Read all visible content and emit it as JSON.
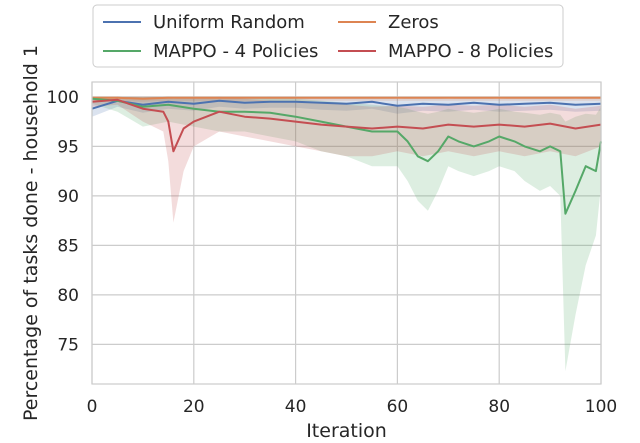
{
  "chart_data": {
    "type": "line",
    "title": "",
    "xlabel": "Iteration",
    "ylabel": "Percentage of tasks done - household 1",
    "xlim": [
      0,
      100
    ],
    "ylim": [
      71,
      101.5
    ],
    "x_ticks": [
      0,
      20,
      40,
      60,
      80,
      100
    ],
    "y_ticks": [
      75,
      80,
      85,
      90,
      95,
      100
    ],
    "grid": true,
    "legend": {
      "position": "top-outside",
      "columns": 2
    },
    "series": [
      {
        "name": "Uniform Random",
        "color": "#4c72b0",
        "x": [
          0,
          5,
          10,
          15,
          20,
          25,
          30,
          35,
          40,
          45,
          50,
          55,
          60,
          65,
          70,
          75,
          80,
          85,
          90,
          95,
          100
        ],
        "values": [
          98.8,
          99.6,
          99.2,
          99.5,
          99.3,
          99.6,
          99.4,
          99.5,
          99.5,
          99.4,
          99.3,
          99.5,
          99.1,
          99.3,
          99.2,
          99.4,
          99.2,
          99.3,
          99.4,
          99.2,
          99.3
        ],
        "lower": [
          98.0,
          99.0,
          98.4,
          98.8,
          98.6,
          99.0,
          98.8,
          98.9,
          98.9,
          98.7,
          98.6,
          98.8,
          98.3,
          98.6,
          98.5,
          98.7,
          98.5,
          98.6,
          98.7,
          98.5,
          98.6
        ],
        "upper": [
          99.6,
          100.0,
          99.9,
          100.0,
          99.9,
          100.0,
          99.9,
          100.0,
          100.0,
          99.9,
          99.9,
          100.0,
          99.8,
          99.9,
          99.8,
          99.9,
          99.8,
          99.9,
          99.9,
          99.8,
          99.9
        ]
      },
      {
        "name": "Zeros",
        "color": "#dd8452",
        "x": [
          0,
          5,
          10,
          15,
          20,
          25,
          30,
          35,
          40,
          45,
          50,
          55,
          60,
          65,
          70,
          75,
          80,
          85,
          90,
          95,
          100
        ],
        "values": [
          99.9,
          99.9,
          99.8,
          99.9,
          99.9,
          99.9,
          99.9,
          99.9,
          99.9,
          99.9,
          99.9,
          99.9,
          99.9,
          99.9,
          99.9,
          99.9,
          99.9,
          99.9,
          99.9,
          99.9,
          99.9
        ],
        "lower": [
          99.6,
          99.6,
          99.5,
          99.6,
          99.6,
          99.6,
          99.6,
          99.6,
          99.6,
          99.6,
          99.6,
          99.6,
          99.6,
          99.6,
          99.6,
          99.6,
          99.6,
          99.6,
          99.6,
          99.6,
          99.6
        ],
        "upper": [
          100.0,
          100.0,
          100.0,
          100.0,
          100.0,
          100.0,
          100.0,
          100.0,
          100.0,
          100.0,
          100.0,
          100.0,
          100.0,
          100.0,
          100.0,
          100.0,
          100.0,
          100.0,
          100.0,
          100.0,
          100.0
        ]
      },
      {
        "name": "MAPPO - 4 Policies",
        "color": "#55a868",
        "x": [
          0,
          5,
          10,
          15,
          20,
          25,
          30,
          35,
          40,
          45,
          50,
          55,
          60,
          62,
          64,
          66,
          68,
          70,
          72,
          75,
          78,
          80,
          83,
          85,
          88,
          90,
          92,
          93,
          95,
          97,
          99,
          100
        ],
        "values": [
          99.8,
          99.6,
          99.0,
          99.2,
          98.8,
          98.5,
          98.5,
          98.4,
          98.0,
          97.5,
          97.0,
          96.5,
          96.5,
          95.5,
          94.0,
          93.5,
          94.5,
          96.0,
          95.5,
          95.0,
          95.5,
          96.0,
          95.5,
          95.0,
          94.5,
          95.0,
          94.5,
          88.2,
          90.5,
          93.0,
          92.5,
          95.5
        ],
        "lower": [
          99.3,
          98.5,
          97.0,
          97.5,
          97.0,
          96.5,
          96.5,
          96.0,
          95.5,
          94.5,
          94.0,
          93.0,
          93.0,
          91.5,
          89.5,
          88.5,
          90.5,
          93.0,
          92.5,
          92.0,
          92.5,
          93.0,
          92.5,
          91.5,
          90.5,
          91.0,
          90.0,
          72.3,
          78.0,
          83.0,
          86.0,
          91.0
        ],
        "upper": [
          100.0,
          100.0,
          100.0,
          100.0,
          100.0,
          100.0,
          100.0,
          100.0,
          99.8,
          99.6,
          99.4,
          99.2,
          99.0,
          98.8,
          98.5,
          98.3,
          98.5,
          98.8,
          98.6,
          98.4,
          98.6,
          98.8,
          98.5,
          98.4,
          98.2,
          98.4,
          98.2,
          97.5,
          98.0,
          98.3,
          98.2,
          99.0
        ]
      },
      {
        "name": "MAPPO - 8 Policies",
        "color": "#c44e52",
        "x": [
          0,
          5,
          10,
          14,
          15,
          16,
          18,
          20,
          25,
          30,
          35,
          40,
          45,
          50,
          55,
          60,
          65,
          70,
          75,
          80,
          85,
          90,
          95,
          100
        ],
        "values": [
          99.5,
          99.7,
          98.8,
          98.5,
          97.5,
          94.5,
          96.8,
          97.5,
          98.5,
          98.0,
          97.8,
          97.5,
          97.2,
          97.0,
          96.8,
          97.0,
          96.8,
          97.2,
          97.0,
          97.2,
          97.0,
          97.3,
          96.8,
          97.2
        ],
        "lower": [
          99.0,
          99.2,
          97.5,
          96.5,
          93.5,
          87.3,
          92.5,
          95.0,
          96.5,
          96.0,
          95.5,
          95.0,
          94.5,
          94.0,
          94.0,
          94.5,
          94.0,
          94.5,
          94.0,
          94.5,
          94.0,
          94.5,
          94.0,
          95.0
        ],
        "upper": [
          100.0,
          100.0,
          100.0,
          100.0,
          100.0,
          99.8,
          99.9,
          100.0,
          100.0,
          99.8,
          99.6,
          99.5,
          99.4,
          99.2,
          99.0,
          99.1,
          99.0,
          99.2,
          99.1,
          99.2,
          99.0,
          99.2,
          98.8,
          99.1
        ]
      }
    ]
  }
}
